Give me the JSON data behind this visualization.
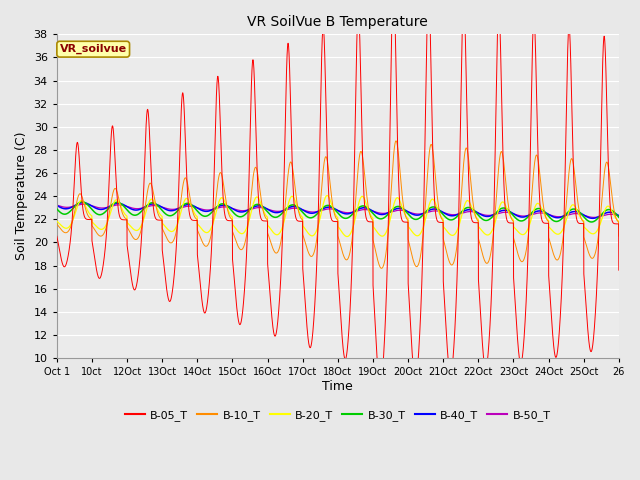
{
  "title": "VR SoilVue B Temperature",
  "xlabel": "Time",
  "ylabel": "Soil Temperature (C)",
  "ylim": [
    10,
    38
  ],
  "yticks": [
    10,
    12,
    14,
    16,
    18,
    20,
    22,
    24,
    26,
    28,
    30,
    32,
    34,
    36,
    38
  ],
  "x_labels": [
    "Oct 1",
    "10ct",
    "12Oct",
    "13Oct",
    "14Oct",
    "15Oct",
    "16Oct",
    "17Oct",
    "18Oct",
    "19Oct",
    "20Oct",
    "21Oct",
    "22Oct",
    "23Oct",
    "24Oct",
    "25Oct",
    "26"
  ],
  "series_colors": {
    "B-05_T": "#ff0000",
    "B-10_T": "#ff8c00",
    "B-20_T": "#ffff00",
    "B-30_T": "#00cc00",
    "B-40_T": "#0000ff",
    "B-50_T": "#bb00bb"
  },
  "series_names": [
    "B-05_T",
    "B-10_T",
    "B-20_T",
    "B-30_T",
    "B-40_T",
    "B-50_T"
  ],
  "watermark": "VR_soilvue",
  "bg_color": "#e8e8e8",
  "plot_bg_color": "#ebebeb",
  "grid_color": "#ffffff",
  "n_days": 16,
  "pts_per_day": 240
}
